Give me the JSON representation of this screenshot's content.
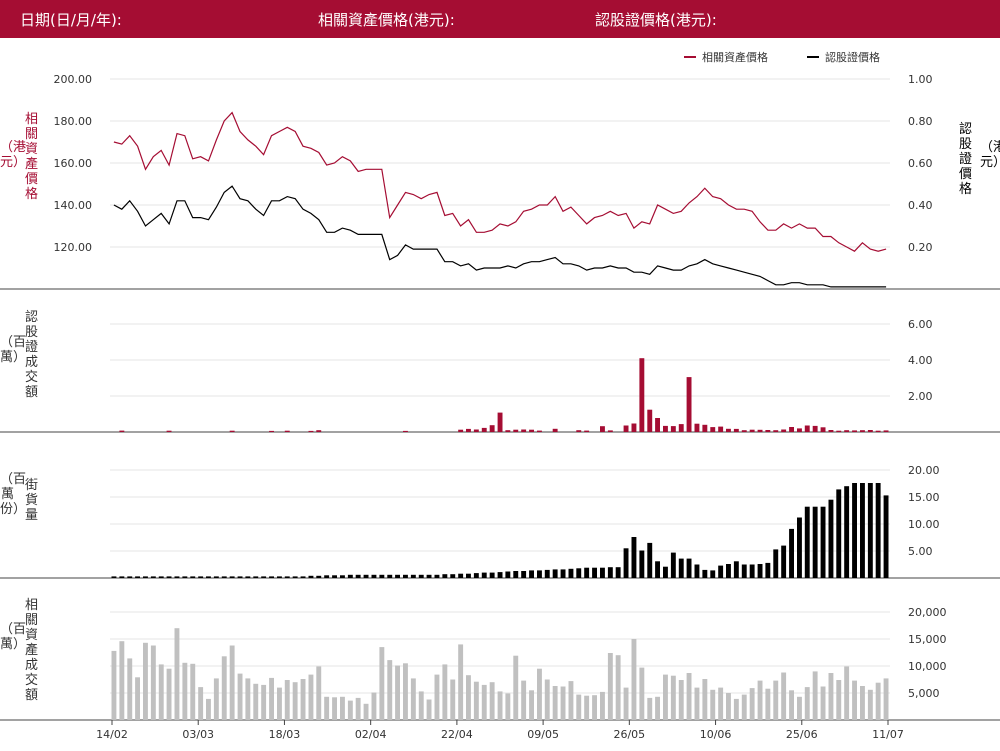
{
  "header": {
    "date_label": "日期(日/月/年):",
    "underlying_price_label": "相關資產價格(港元):",
    "warrant_price_label": "認股證價格(港元):"
  },
  "colors": {
    "brand": "#a50d33",
    "underlying": "#a50d33",
    "warrant": "#000000",
    "underlying_turnover": "#c0c0c0"
  },
  "axis_text": {
    "left_price": "相關資產價格",
    "left_price_unit": "（港元）",
    "right_price": "認股證價格",
    "right_price_unit": "（港元）",
    "warrant_turnover": "認股證成交額",
    "warrant_turnover_unit": "（百萬）",
    "outstanding": "街貨量",
    "outstanding_unit": "（百萬份）",
    "underlying_turnover": "相關資產成交額",
    "underlying_turnover_unit": "（百萬）"
  },
  "chart_data": [
    {
      "type": "line",
      "legend": [
        "相關資產價格",
        "認股證價格"
      ],
      "legend_position": "top-right",
      "grid": true,
      "left_ticks": [
        "200.00",
        "180.00",
        "160.00",
        "140.00",
        "120.00"
      ],
      "right_ticks": [
        "1.00",
        "0.80",
        "0.60",
        "0.40",
        "0.20"
      ],
      "ylim_left": [
        100,
        200
      ],
      "ylim_right": [
        0,
        1
      ],
      "series": [
        {
          "name": "相關資產價格",
          "axis": "left",
          "values": [
            170,
            169,
            173,
            168,
            157,
            163,
            166,
            159,
            174,
            173,
            162,
            163,
            161,
            171,
            180,
            184,
            175,
            171,
            168,
            164,
            173,
            175,
            177,
            175,
            168,
            167,
            165,
            159,
            160,
            163,
            161,
            156,
            157,
            157,
            157,
            134,
            140,
            146,
            145,
            143,
            145,
            146,
            135,
            136,
            130,
            133,
            127,
            127,
            128,
            131,
            130,
            132,
            137,
            138,
            140,
            140,
            144,
            137,
            139,
            135,
            131,
            134,
            135,
            137,
            135,
            136,
            129,
            132,
            131,
            140,
            138,
            136,
            137,
            141,
            144,
            148,
            144,
            143,
            140,
            138,
            138,
            137,
            132,
            128,
            128,
            131,
            129,
            131,
            129,
            129,
            125,
            125,
            122,
            120,
            118,
            122,
            119,
            118,
            119
          ]
        },
        {
          "name": "認股證價格",
          "axis": "right",
          "values": [
            0.4,
            0.38,
            0.42,
            0.37,
            0.3,
            0.33,
            0.36,
            0.31,
            0.42,
            0.42,
            0.34,
            0.34,
            0.33,
            0.39,
            0.46,
            0.49,
            0.43,
            0.42,
            0.38,
            0.35,
            0.42,
            0.42,
            0.44,
            0.43,
            0.38,
            0.36,
            0.33,
            0.27,
            0.27,
            0.29,
            0.28,
            0.26,
            0.26,
            0.26,
            0.26,
            0.14,
            0.16,
            0.21,
            0.19,
            0.19,
            0.19,
            0.19,
            0.13,
            0.13,
            0.11,
            0.12,
            0.09,
            0.1,
            0.1,
            0.1,
            0.11,
            0.1,
            0.12,
            0.13,
            0.13,
            0.14,
            0.15,
            0.12,
            0.12,
            0.11,
            0.09,
            0.1,
            0.1,
            0.11,
            0.1,
            0.1,
            0.08,
            0.08,
            0.07,
            0.11,
            0.1,
            0.09,
            0.09,
            0.11,
            0.12,
            0.14,
            0.12,
            0.11,
            0.1,
            0.09,
            0.08,
            0.07,
            0.06,
            0.04,
            0.02,
            0.02,
            0.03,
            0.03,
            0.02,
            0.02,
            0.02,
            0.01,
            0.01,
            0.01,
            0.01,
            0.01,
            0.01,
            0.01,
            0.01
          ]
        }
      ]
    },
    {
      "type": "bar",
      "ylabel": "認股證成交額（百萬）",
      "ticks": [
        "6.00",
        "4.00",
        "2.00"
      ],
      "ylim": [
        0,
        6
      ],
      "grid": true,
      "values": [
        0,
        0.08,
        0,
        0,
        0,
        0,
        0,
        0.07,
        0,
        0,
        0,
        0,
        0,
        0,
        0,
        0.07,
        0,
        0,
        0,
        0,
        0.06,
        0,
        0.07,
        0,
        0,
        0.06,
        0.1,
        0,
        0,
        0,
        0,
        0,
        0,
        0,
        0,
        0,
        0,
        0.06,
        0,
        0,
        0,
        0,
        0,
        0,
        0.13,
        0.17,
        0.14,
        0.23,
        0.38,
        1.08,
        0.1,
        0.13,
        0.14,
        0.13,
        0.08,
        0,
        0.18,
        0,
        0,
        0.1,
        0.08,
        0,
        0.32,
        0.09,
        0,
        0.36,
        0.47,
        4.1,
        1.24,
        0.78,
        0.34,
        0.33,
        0.44,
        3.05,
        0.46,
        0.4,
        0.27,
        0.3,
        0.18,
        0.17,
        0.1,
        0.13,
        0.12,
        0.11,
        0.1,
        0.14,
        0.28,
        0.2,
        0.36,
        0.34,
        0.26,
        0.11,
        0.07,
        0.1,
        0.09,
        0.1,
        0.11,
        0.07,
        0.09
      ]
    },
    {
      "type": "bar",
      "ylabel": "街貨量（百萬份）",
      "ticks": [
        "20.00",
        "15.00",
        "10.00",
        "5.00"
      ],
      "ylim": [
        0,
        20
      ],
      "grid": true,
      "values": [
        0.3,
        0.3,
        0.3,
        0.3,
        0.3,
        0.3,
        0.3,
        0.3,
        0.3,
        0.3,
        0.3,
        0.3,
        0.3,
        0.3,
        0.3,
        0.3,
        0.3,
        0.3,
        0.3,
        0.3,
        0.3,
        0.3,
        0.3,
        0.3,
        0.3,
        0.4,
        0.4,
        0.5,
        0.5,
        0.5,
        0.6,
        0.6,
        0.6,
        0.6,
        0.6,
        0.6,
        0.6,
        0.6,
        0.6,
        0.6,
        0.6,
        0.6,
        0.7,
        0.7,
        0.8,
        0.8,
        0.9,
        1,
        1,
        1.1,
        1.2,
        1.3,
        1.3,
        1.4,
        1.4,
        1.5,
        1.6,
        1.6,
        1.7,
        1.8,
        1.9,
        1.9,
        1.9,
        2,
        2,
        5.5,
        7.6,
        5.1,
        6.5,
        3.1,
        2.1,
        4.7,
        3.6,
        3.6,
        2.5,
        1.5,
        1.4,
        2.3,
        2.6,
        3.1,
        2.5,
        2.5,
        2.6,
        2.8,
        5.3,
        6,
        9.1,
        11.2,
        13.2,
        13.2,
        13.2,
        14.5,
        16.4,
        17,
        17.6,
        17.6,
        17.6,
        17.6,
        15.3
      ]
    },
    {
      "type": "bar",
      "ylabel": "相關資產成交額（百萬）",
      "ticks": [
        "20,000",
        "15,000",
        "10,000",
        "5,000"
      ],
      "ylim": [
        0,
        20000
      ],
      "grid": true,
      "x_ticks": [
        "14/02",
        "03/03",
        "18/03",
        "02/04",
        "22/04",
        "09/05",
        "26/05",
        "10/06",
        "25/06",
        "11/07"
      ],
      "values": [
        12800,
        14600,
        11400,
        7900,
        14300,
        13800,
        10300,
        9500,
        17000,
        10600,
        10400,
        6100,
        3900,
        7700,
        11800,
        13800,
        8600,
        7700,
        6700,
        6500,
        7800,
        6000,
        7400,
        7000,
        7600,
        8400,
        9900,
        4300,
        4200,
        4300,
        3600,
        4100,
        3000,
        5100,
        13500,
        11100,
        10100,
        10500,
        7700,
        5300,
        3800,
        8400,
        10300,
        7500,
        14000,
        8300,
        7100,
        6500,
        7000,
        5300,
        4900,
        11900,
        7300,
        5500,
        9500,
        7500,
        6300,
        6200,
        7200,
        4700,
        4500,
        4600,
        5200,
        12400,
        12000,
        6000,
        15000,
        9700,
        4100,
        4300,
        8400,
        8200,
        7400,
        8700,
        6000,
        7600,
        5600,
        6000,
        5000,
        3900,
        4700,
        5900,
        7300,
        5800,
        7300,
        8800,
        5500,
        4300,
        6100,
        9000,
        6200,
        8700,
        7400,
        9900,
        7300,
        6300,
        5600,
        6900,
        7700
      ]
    }
  ]
}
